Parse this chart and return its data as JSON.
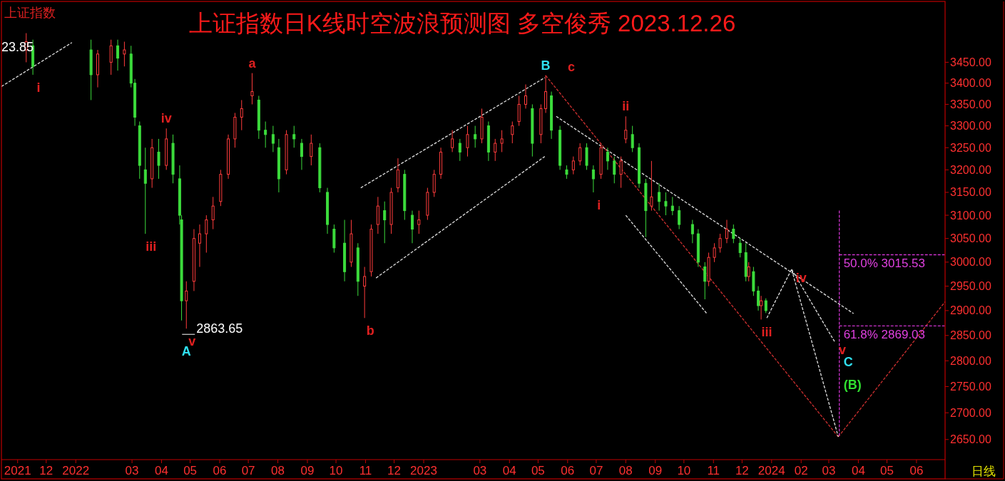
{
  "chart_data": {
    "type": "candlestick",
    "title": "上证指数日K线时空波浪预测图 多空俊秀 2023.12.26",
    "subtitle": "上证指数",
    "log": true,
    "grid": false,
    "xlim": [
      "2021-10-15",
      "2024-07-01"
    ],
    "ylim": [
      2613,
      3600
    ],
    "xticks": [
      {
        "value": "2021-11-01",
        "label": "2021"
      },
      {
        "value": "2021-12-01",
        "label": "12"
      },
      {
        "value": "2022-01-01",
        "label": "2022"
      },
      {
        "value": "2022-03-01",
        "label": "03"
      },
      {
        "value": "2022-04-01",
        "label": "04"
      },
      {
        "value": "2022-05-01",
        "label": "05"
      },
      {
        "value": "2022-06-01",
        "label": "06"
      },
      {
        "value": "2022-07-01",
        "label": "07"
      },
      {
        "value": "2022-08-01",
        "label": "08"
      },
      {
        "value": "2022-09-01",
        "label": "09"
      },
      {
        "value": "2022-10-01",
        "label": "10"
      },
      {
        "value": "2022-11-01",
        "label": "11"
      },
      {
        "value": "2022-12-01",
        "label": "12"
      },
      {
        "value": "2023-01-01",
        "label": "2023"
      },
      {
        "value": "2023-03-01",
        "label": "03"
      },
      {
        "value": "2023-04-01",
        "label": "04"
      },
      {
        "value": "2023-05-01",
        "label": "05"
      },
      {
        "value": "2023-06-01",
        "label": "06"
      },
      {
        "value": "2023-07-01",
        "label": "07"
      },
      {
        "value": "2023-08-01",
        "label": "08"
      },
      {
        "value": "2023-09-01",
        "label": "09"
      },
      {
        "value": "2023-10-01",
        "label": "10"
      },
      {
        "value": "2023-11-01",
        "label": "11"
      },
      {
        "value": "2023-12-01",
        "label": "12"
      },
      {
        "value": "2024-01-01",
        "label": "2024"
      },
      {
        "value": "2024-02-01",
        "label": "02"
      },
      {
        "value": "2024-03-01",
        "label": "03"
      },
      {
        "value": "2024-04-01",
        "label": "04"
      },
      {
        "value": "2024-05-01",
        "label": "05"
      },
      {
        "value": "2024-06-01",
        "label": "06"
      }
    ],
    "yticks": [
      {
        "value": 2650,
        "label": "2650.00"
      },
      {
        "value": 2700,
        "label": "2700.00"
      },
      {
        "value": 2750,
        "label": "2750.00"
      },
      {
        "value": 2800,
        "label": "2800.00"
      },
      {
        "value": 2850,
        "label": "2850.00"
      },
      {
        "value": 2900,
        "label": "2900.00"
      },
      {
        "value": 2950,
        "label": "2950.00"
      },
      {
        "value": 3000,
        "label": "3000.00"
      },
      {
        "value": 3050,
        "label": "3050.00"
      },
      {
        "value": 3100,
        "label": "3100.00"
      },
      {
        "value": 3150,
        "label": "3150.00"
      },
      {
        "value": 3200,
        "label": "3200.00"
      },
      {
        "value": 3250,
        "label": "3250.00"
      },
      {
        "value": 3300,
        "label": "3300.00"
      },
      {
        "value": 3350,
        "label": "3350.00"
      },
      {
        "value": 3400,
        "label": "3400.00"
      },
      {
        "value": 3450,
        "label": "3450.00"
      }
    ],
    "x": [
      "2021-11-10",
      "2021-11-17",
      "2022-01-17",
      "2022-01-24",
      "2022-02-07",
      "2022-02-14",
      "2022-02-21",
      "2022-02-28",
      "2022-03-04",
      "2022-03-09",
      "2022-03-15",
      "2022-03-22",
      "2022-03-29",
      "2022-04-06",
      "2022-04-13",
      "2022-04-20",
      "2022-04-22",
      "2022-04-27",
      "2022-05-05",
      "2022-05-11",
      "2022-05-18",
      "2022-05-25",
      "2022-06-02",
      "2022-06-10",
      "2022-06-17",
      "2022-06-24",
      "2022-07-05",
      "2022-07-12",
      "2022-07-19",
      "2022-07-27",
      "2022-08-02",
      "2022-08-10",
      "2022-08-18",
      "2022-08-26",
      "2022-09-05",
      "2022-09-14",
      "2022-09-22",
      "2022-09-29",
      "2022-10-10",
      "2022-10-17",
      "2022-10-24",
      "2022-10-31",
      "2022-11-07",
      "2022-11-14",
      "2022-11-21",
      "2022-11-28",
      "2022-12-05",
      "2022-12-12",
      "2022-12-20",
      "2022-12-27",
      "2023-01-05",
      "2023-01-12",
      "2023-01-19",
      "2023-01-31",
      "2023-02-08",
      "2023-02-16",
      "2023-02-24",
      "2023-03-03",
      "2023-03-10",
      "2023-03-17",
      "2023-03-24",
      "2023-04-04",
      "2023-04-11",
      "2023-04-18",
      "2023-04-25",
      "2023-05-04",
      "2023-05-09",
      "2023-05-15",
      "2023-05-24",
      "2023-05-31",
      "2023-06-07",
      "2023-06-14",
      "2023-06-21",
      "2023-06-28",
      "2023-07-06",
      "2023-07-13",
      "2023-07-20",
      "2023-07-27",
      "2023-08-01",
      "2023-08-08",
      "2023-08-15",
      "2023-08-22",
      "2023-08-28",
      "2023-09-05",
      "2023-09-12",
      "2023-09-19",
      "2023-09-26",
      "2023-10-10",
      "2023-10-16",
      "2023-10-23",
      "2023-10-27",
      "2023-11-02",
      "2023-11-08",
      "2023-11-15",
      "2023-11-22",
      "2023-11-29",
      "2023-12-05",
      "2023-12-08",
      "2023-12-13",
      "2023-12-18",
      "2023-12-21",
      "2023-12-26"
    ],
    "ohlc": [
      [
        3480,
        3521,
        3450,
        3500
      ],
      [
        3490,
        3505,
        3420,
        3440
      ],
      [
        3480,
        3505,
        3360,
        3420
      ],
      [
        3420,
        3480,
        3390,
        3470
      ],
      [
        3450,
        3505,
        3420,
        3490
      ],
      [
        3490,
        3505,
        3430,
        3460
      ],
      [
        3470,
        3500,
        3440,
        3480
      ],
      [
        3470,
        3490,
        3390,
        3400
      ],
      [
        3400,
        3410,
        3300,
        3320
      ],
      [
        3300,
        3310,
        3180,
        3210
      ],
      [
        3200,
        3250,
        3060,
        3170
      ],
      [
        3180,
        3270,
        3160,
        3250
      ],
      [
        3240,
        3270,
        3180,
        3210
      ],
      [
        3210,
        3294,
        3200,
        3270
      ],
      [
        3260,
        3280,
        3170,
        3190
      ],
      [
        3180,
        3210,
        3080,
        3100
      ],
      [
        3090,
        3100,
        2880,
        2920
      ],
      [
        2920,
        2960,
        2863.65,
        2940
      ],
      [
        2960,
        3070,
        2940,
        3050
      ],
      [
        3040,
        3080,
        2990,
        3060
      ],
      [
        3060,
        3100,
        3020,
        3090
      ],
      [
        3090,
        3140,
        3070,
        3120
      ],
      [
        3130,
        3200,
        3120,
        3190
      ],
      [
        3190,
        3280,
        3180,
        3270
      ],
      [
        3270,
        3330,
        3250,
        3320
      ],
      [
        3320,
        3360,
        3290,
        3340
      ],
      [
        3370,
        3424,
        3350,
        3380
      ],
      [
        3360,
        3370,
        3270,
        3290
      ],
      [
        3290,
        3310,
        3250,
        3280
      ],
      [
        3280,
        3300,
        3240,
        3260
      ],
      [
        3250,
        3270,
        3150,
        3180
      ],
      [
        3200,
        3290,
        3190,
        3280
      ],
      [
        3280,
        3300,
        3250,
        3270
      ],
      [
        3260,
        3270,
        3200,
        3230
      ],
      [
        3230,
        3280,
        3210,
        3260
      ],
      [
        3250,
        3260,
        3150,
        3160
      ],
      [
        3150,
        3160,
        3060,
        3080
      ],
      [
        3070,
        3080,
        3020,
        3030
      ],
      [
        3040,
        3090,
        2960,
        2980
      ],
      [
        3000,
        3090,
        2990,
        3060
      ],
      [
        3030,
        3040,
        2930,
        2960
      ],
      [
        2950,
        2990,
        2885,
        2970
      ],
      [
        2980,
        3080,
        2970,
        3070
      ],
      [
        3080,
        3140,
        3060,
        3120
      ],
      [
        3110,
        3130,
        3040,
        3090
      ],
      [
        3080,
        3160,
        3060,
        3150
      ],
      [
        3160,
        3226,
        3150,
        3200
      ],
      [
        3190,
        3200,
        3090,
        3110
      ],
      [
        3100,
        3110,
        3040,
        3070
      ],
      [
        3080,
        3110,
        3060,
        3090
      ],
      [
        3100,
        3160,
        3090,
        3150
      ],
      [
        3150,
        3200,
        3140,
        3190
      ],
      [
        3190,
        3250,
        3180,
        3240
      ],
      [
        3250,
        3290,
        3240,
        3270
      ],
      [
        3260,
        3270,
        3220,
        3240
      ],
      [
        3250,
        3300,
        3230,
        3280
      ],
      [
        3280,
        3300,
        3250,
        3270
      ],
      [
        3270,
        3340,
        3260,
        3320
      ],
      [
        3300,
        3310,
        3220,
        3240
      ],
      [
        3240,
        3270,
        3220,
        3260
      ],
      [
        3260,
        3290,
        3240,
        3270
      ],
      [
        3280,
        3310,
        3260,
        3300
      ],
      [
        3310,
        3370,
        3300,
        3350
      ],
      [
        3350,
        3397,
        3340,
        3370
      ],
      [
        3340,
        3350,
        3230,
        3260
      ],
      [
        3280,
        3350,
        3260,
        3340
      ],
      [
        3340,
        3418.95,
        3330,
        3380
      ],
      [
        3370,
        3380,
        3270,
        3290
      ],
      [
        3290,
        3300,
        3200,
        3210
      ],
      [
        3200,
        3210,
        3180,
        3190
      ],
      [
        3200,
        3230,
        3190,
        3220
      ],
      [
        3220,
        3260,
        3210,
        3250
      ],
      [
        3250,
        3260,
        3200,
        3210
      ],
      [
        3200,
        3210,
        3150,
        3180
      ],
      [
        3190,
        3260,
        3180,
        3250
      ],
      [
        3240,
        3250,
        3200,
        3220
      ],
      [
        3220,
        3230,
        3170,
        3190
      ],
      [
        3190,
        3230,
        3160,
        3220
      ],
      [
        3270,
        3322,
        3260,
        3290
      ],
      [
        3280,
        3300,
        3240,
        3250
      ],
      [
        3250,
        3260,
        3160,
        3170
      ],
      [
        3170,
        3180,
        3053,
        3110
      ],
      [
        3120,
        3220,
        3110,
        3140
      ],
      [
        3150,
        3170,
        3110,
        3130
      ],
      [
        3130,
        3150,
        3100,
        3120
      ],
      [
        3120,
        3140,
        3100,
        3110
      ],
      [
        3110,
        3120,
        3070,
        3080
      ],
      [
        3080,
        3090,
        3040,
        3060
      ],
      [
        3060,
        3070,
        2990,
        3000
      ],
      [
        2990,
        3000,
        2923,
        2960
      ],
      [
        2960,
        3020,
        2950,
        3010
      ],
      [
        3010,
        3040,
        3000,
        3030
      ],
      [
        3030,
        3060,
        3020,
        3050
      ],
      [
        3050,
        3090,
        3040,
        3070
      ],
      [
        3070,
        3080,
        3040,
        3050
      ],
      [
        3040,
        3050,
        3010,
        3020
      ],
      [
        3020,
        3040,
        2960,
        2970
      ],
      [
        2970,
        3000,
        2960,
        2990
      ],
      [
        2980,
        2990,
        2930,
        2940
      ],
      [
        2940,
        2950,
        2900,
        2910
      ],
      [
        2910,
        2930,
        2882,
        2920
      ],
      [
        2920,
        2925,
        2895,
        2900
      ]
    ],
    "colors": [
      "#ff3c3c",
      "#3cdc3c",
      "#3cdc3c",
      "#ff3c3c",
      "#ff3c3c",
      "#3cdc3c",
      "#ff3c3c",
      "#3cdc3c",
      "#3cdc3c",
      "#3cdc3c",
      "#3cdc3c",
      "#ff3c3c",
      "#3cdc3c",
      "#ff3c3c",
      "#3cdc3c",
      "#3cdc3c",
      "#3cdc3c",
      "#ff3c3c",
      "#ff3c3c",
      "#ff3c3c",
      "#ff3c3c",
      "#ff3c3c",
      "#ff3c3c",
      "#ff3c3c",
      "#ff3c3c",
      "#ff3c3c",
      "#ff3c3c",
      "#3cdc3c",
      "#3cdc3c",
      "#3cdc3c",
      "#3cdc3c",
      "#ff3c3c",
      "#3cdc3c",
      "#3cdc3c",
      "#ff3c3c",
      "#3cdc3c",
      "#3cdc3c",
      "#3cdc3c",
      "#3cdc3c",
      "#ff3c3c",
      "#3cdc3c",
      "#ff3c3c",
      "#ff3c3c",
      "#ff3c3c",
      "#3cdc3c",
      "#ff3c3c",
      "#ff3c3c",
      "#3cdc3c",
      "#3cdc3c",
      "#ff3c3c",
      "#ff3c3c",
      "#ff3c3c",
      "#ff3c3c",
      "#ff3c3c",
      "#3cdc3c",
      "#ff3c3c",
      "#3cdc3c",
      "#ff3c3c",
      "#3cdc3c",
      "#ff3c3c",
      "#ff3c3c",
      "#ff3c3c",
      "#ff3c3c",
      "#ff3c3c",
      "#3cdc3c",
      "#ff3c3c",
      "#ff3c3c",
      "#3cdc3c",
      "#3cdc3c",
      "#3cdc3c",
      "#ff3c3c",
      "#ff3c3c",
      "#3cdc3c",
      "#3cdc3c",
      "#ff3c3c",
      "#3cdc3c",
      "#3cdc3c",
      "#ff3c3c",
      "#ff3c3c",
      "#3cdc3c",
      "#3cdc3c",
      "#3cdc3c",
      "#ff3c3c",
      "#3cdc3c",
      "#3cdc3c",
      "#3cdc3c",
      "#3cdc3c",
      "#3cdc3c",
      "#3cdc3c",
      "#3cdc3c",
      "#ff3c3c",
      "#ff3c3c",
      "#ff3c3c",
      "#ff3c3c",
      "#3cdc3c",
      "#3cdc3c",
      "#3cdc3c",
      "#ff3c3c",
      "#3cdc3c",
      "#3cdc3c",
      "#ff3c3c",
      "#3cdc3c"
    ],
    "series": [
      {
        "type": "line",
        "line_style": "dashed",
        "color": "#e0e0e0",
        "x": [
          "2021-10-15",
          "2021-12-28"
        ],
        "values": [
          3392,
          3498
        ]
      },
      {
        "type": "line",
        "line_style": "dashed",
        "color": "#e0e0e0",
        "x": [
          "2022-10-27",
          "2023-05-08"
        ],
        "values": [
          3160,
          3413
        ]
      },
      {
        "type": "line",
        "line_style": "dashed",
        "color": "#e0e0e0",
        "x": [
          "2022-11-12",
          "2023-05-08"
        ],
        "values": [
          2967,
          3230
        ]
      },
      {
        "type": "line",
        "line_style": "dashed",
        "color": "#e0e0e0",
        "x": [
          "2023-05-20",
          "2024-03-27"
        ],
        "values": [
          3322,
          2894
        ]
      },
      {
        "type": "line",
        "line_style": "dashed",
        "color": "#e0e0e0",
        "x": [
          "2023-08-01",
          "2023-10-25"
        ],
        "values": [
          3100,
          2894
        ]
      },
      {
        "type": "line",
        "line_style": "dashed",
        "color": "#d03030",
        "x": [
          "2023-05-09",
          "2024-03-11"
        ],
        "values": [
          3418,
          2655
        ]
      },
      {
        "type": "line",
        "line_style": "dashed",
        "color": "#d03030",
        "x": [
          "2024-03-11",
          "2024-07-01"
        ],
        "values": [
          2655,
          2918
        ]
      },
      {
        "type": "line",
        "line_style": "dashed",
        "color": "#e0e0e0",
        "x": [
          "2023-12-27",
          "2024-01-22",
          "2024-03-11"
        ],
        "values": [
          2885,
          2985,
          2655
        ]
      },
      {
        "type": "line",
        "line_style": "dashed",
        "color": "#e0e0e0",
        "x": [
          "2024-01-22",
          "2024-03-07"
        ],
        "values": [
          2985,
          2838
        ]
      },
      {
        "type": "line",
        "line_style": "dashed",
        "color": "#cc33cc",
        "x": [
          "2024-03-12",
          "2024-03-12"
        ],
        "values": [
          3110,
          2655
        ]
      },
      {
        "type": "line",
        "line_style": "dashed",
        "color": "#cc33cc",
        "x": [
          "2024-03-12",
          "2024-07-01"
        ],
        "values": [
          3015.53,
          3015.53
        ]
      },
      {
        "type": "line",
        "line_style": "dashed",
        "color": "#cc33cc",
        "x": [
          "2024-03-12",
          "2024-07-01"
        ],
        "values": [
          2869.03,
          2869.03
        ]
      }
    ],
    "annotations": [
      "23.85",
      "日线",
      {
        "text": "i",
        "x": "2021-11-17",
        "y": 3420
      },
      {
        "text": "iii",
        "x": "2022-03-15",
        "y": 3060
      },
      {
        "text": "iv",
        "x": "2022-04-06",
        "y": 3294
      },
      {
        "text": "v",
        "x": "2022-04-27",
        "y": 2863.65
      },
      {
        "text": "2863.65",
        "x": "2022-04-27",
        "y": 2863.65
      },
      {
        "text": "A",
        "x": "2022-04-27",
        "y": 2863.65
      },
      {
        "text": "a",
        "x": "2022-07-05",
        "y": 3424
      },
      {
        "text": "b",
        "x": "2022-10-31",
        "y": 2885
      },
      {
        "text": "B",
        "x": "2023-05-09",
        "y": 3418.95
      },
      {
        "text": "c",
        "x": "2023-05-09",
        "y": 3418.95
      },
      {
        "text": "i",
        "x": "2023-06-28",
        "y": 3150
      },
      {
        "text": "ii",
        "x": "2023-08-01",
        "y": 3322
      },
      {
        "text": "iii",
        "x": "2023-12-21",
        "y": 2882
      },
      {
        "text": "iv",
        "x": "2024-01-22",
        "y": 2985
      },
      {
        "text": "v",
        "x": "2024-03-07",
        "y": 2838
      },
      {
        "text": "C",
        "x": "2024-03-12",
        "y": 2815
      },
      {
        "text": "(B)",
        "x": "2024-03-12",
        "y": 2770
      },
      {
        "text": "50.0% 3015.53",
        "x": "2024-03-12",
        "y": 3015.53
      },
      {
        "text": "61.8% 2869.03",
        "x": "2024-03-12",
        "y": 2869.03
      }
    ]
  }
}
